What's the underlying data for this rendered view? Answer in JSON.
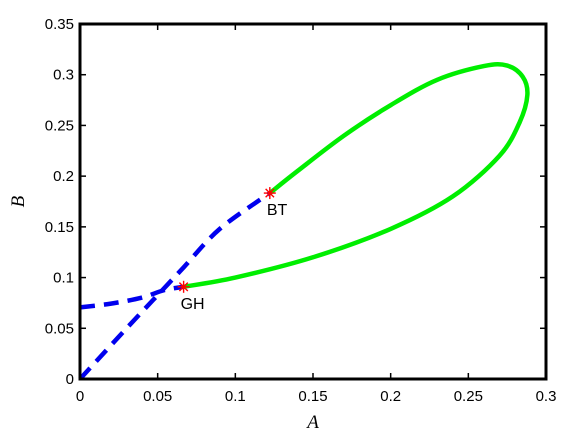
{
  "chart_data": {
    "type": "line",
    "title": "",
    "xlabel": "A",
    "ylabel": "B",
    "xlim": [
      0,
      0.3
    ],
    "ylim": [
      0,
      0.35
    ],
    "grid": false,
    "x_ticks": [
      0,
      0.05,
      0.1,
      0.15,
      0.2,
      0.25,
      0.3
    ],
    "x_tick_labels": [
      "0",
      "0.05",
      "0.1",
      "0.15",
      "0.2",
      "0.25",
      "0.3"
    ],
    "y_ticks": [
      0,
      0.05,
      0.1,
      0.15,
      0.2,
      0.25,
      0.3,
      0.35
    ],
    "y_tick_labels": [
      "0",
      "0.05",
      "0.1",
      "0.15",
      "0.2",
      "0.25",
      "0.3",
      "0.35"
    ],
    "colors": {
      "solid_curve": "#00ee00",
      "dashed_curve": "#0000ee",
      "marker": "#ff0000",
      "frame": "#000000"
    },
    "series": [
      {
        "style": "dashed",
        "color": "#0000ee",
        "points": [
          [
            0,
            0
          ],
          [
            0.03,
            0.05
          ],
          [
            0.05,
            0.0827
          ],
          [
            0.0667,
            0.11
          ],
          [
            0.09,
            0.148
          ],
          [
            0.1222,
            0.1833
          ]
        ]
      },
      {
        "style": "dashed",
        "color": "#0000ee",
        "points": [
          [
            0,
            0.0706
          ],
          [
            0.02,
            0.0743
          ],
          [
            0.04,
            0.0803
          ],
          [
            0.054,
            0.0875
          ],
          [
            0.0667,
            0.0909
          ]
        ]
      },
      {
        "style": "solid",
        "color": "#00ee00",
        "points": [
          [
            0.1222,
            0.1833
          ],
          [
            0.14,
            0.205
          ],
          [
            0.17,
            0.24
          ],
          [
            0.2,
            0.27
          ],
          [
            0.23,
            0.295
          ],
          [
            0.26,
            0.3085
          ],
          [
            0.275,
            0.309
          ],
          [
            0.285,
            0.298
          ],
          [
            0.288,
            0.28
          ],
          [
            0.283,
            0.253
          ],
          [
            0.27,
            0.22
          ],
          [
            0.24,
            0.18
          ],
          [
            0.2,
            0.148
          ],
          [
            0.15,
            0.12
          ],
          [
            0.1,
            0.1
          ],
          [
            0.0667,
            0.0909
          ]
        ]
      }
    ],
    "markers": [
      {
        "label": "BT",
        "x": 0.1222,
        "y": 0.1833
      },
      {
        "label": "GH",
        "x": 0.0667,
        "y": 0.0909
      }
    ]
  }
}
